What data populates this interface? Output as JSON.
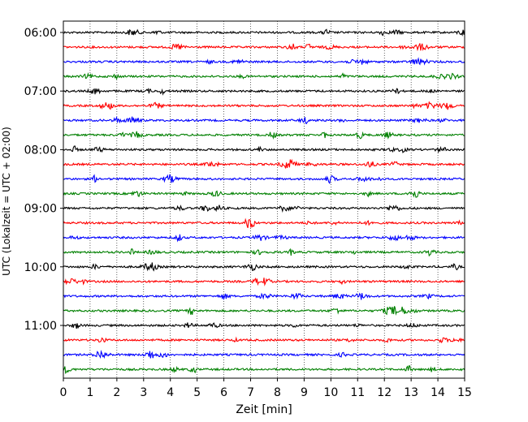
{
  "chart_data": {
    "type": "line",
    "chart_kind": "helicorder (seismogram drum plot)",
    "xlabel": "Zeit  [min]",
    "ylabel": "UTC (Lokalzeit = UTC + 02:00)",
    "xlim": [
      0,
      15
    ],
    "x_ticks": [
      "0",
      "1",
      "2",
      "3",
      "4",
      "5",
      "6",
      "7",
      "8",
      "9",
      "10",
      "11",
      "12",
      "13",
      "14",
      "15"
    ],
    "y_tick_labels": [
      "06:00",
      "07:00",
      "08:00",
      "09:00",
      "10:00",
      "11:00"
    ],
    "grid": "vertical dotted lines at each minute",
    "trace_colors": [
      "#000000",
      "#ff0000",
      "#0000ff",
      "#008000"
    ],
    "traces_per_hour": 4,
    "minutes_per_trace": 15,
    "traces": [
      {
        "start": "06:00",
        "color": "#000000"
      },
      {
        "start": "06:15",
        "color": "#ff0000"
      },
      {
        "start": "06:30",
        "color": "#0000ff"
      },
      {
        "start": "06:45",
        "color": "#008000"
      },
      {
        "start": "07:00",
        "color": "#000000"
      },
      {
        "start": "07:15",
        "color": "#ff0000"
      },
      {
        "start": "07:30",
        "color": "#0000ff"
      },
      {
        "start": "07:45",
        "color": "#008000"
      },
      {
        "start": "08:00",
        "color": "#000000"
      },
      {
        "start": "08:15",
        "color": "#ff0000"
      },
      {
        "start": "08:30",
        "color": "#0000ff"
      },
      {
        "start": "08:45",
        "color": "#008000"
      },
      {
        "start": "09:00",
        "color": "#000000"
      },
      {
        "start": "09:15",
        "color": "#ff0000"
      },
      {
        "start": "09:30",
        "color": "#0000ff"
      },
      {
        "start": "09:45",
        "color": "#008000"
      },
      {
        "start": "10:00",
        "color": "#000000"
      },
      {
        "start": "10:15",
        "color": "#ff0000"
      },
      {
        "start": "10:30",
        "color": "#0000ff"
      },
      {
        "start": "10:45",
        "color": "#008000"
      },
      {
        "start": "11:00",
        "color": "#000000"
      },
      {
        "start": "11:15",
        "color": "#ff0000"
      },
      {
        "start": "11:30",
        "color": "#0000ff"
      },
      {
        "start": "11:45",
        "color": "#008000"
      }
    ]
  }
}
